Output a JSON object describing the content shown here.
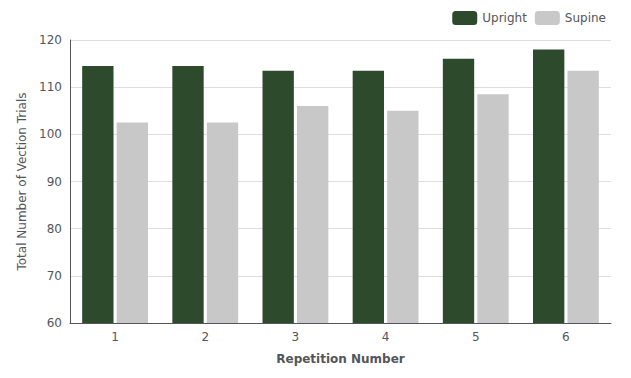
{
  "chart_data": {
    "type": "bar",
    "xlabel": "Repetition Number",
    "ylabel": "Total Number of Vection Trials",
    "categories": [
      1,
      2,
      3,
      4,
      5,
      6
    ],
    "series": [
      {
        "name": "Upright",
        "color": "#2d4a2d",
        "values": [
          114.5,
          114.5,
          113.5,
          113.5,
          116.0,
          118.0
        ]
      },
      {
        "name": "Supine",
        "color": "#c8c8c8",
        "values": [
          102.5,
          102.5,
          106.0,
          105.0,
          108.5,
          113.5
        ]
      }
    ],
    "ylim": [
      60,
      120
    ],
    "yticks": [
      60,
      70,
      80,
      90,
      100,
      110,
      120
    ],
    "grid": true,
    "legend": "upper right"
  }
}
